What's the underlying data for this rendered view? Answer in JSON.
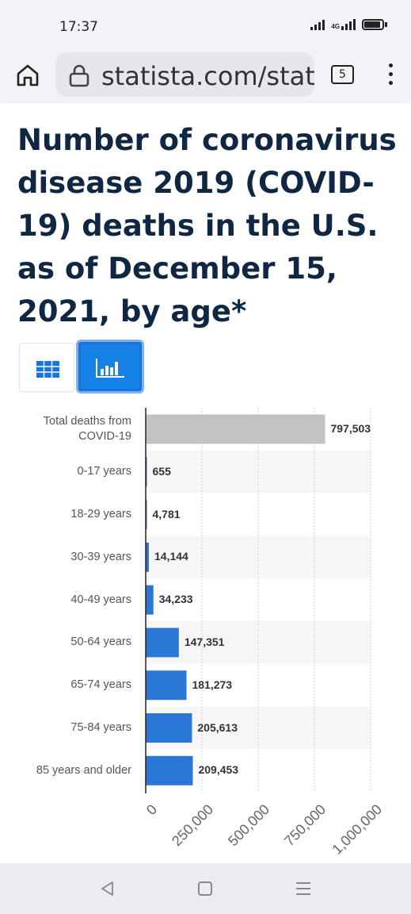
{
  "status_bar": {
    "time": "17:37",
    "network": "4G"
  },
  "browser": {
    "url": "statista.com/stat",
    "tab_count": "5"
  },
  "page": {
    "title": "Number of coronavirus disease 2019 (COVID-19) deaths in the U.S. as of December 15, 2021, by age*"
  },
  "view_toggle": {
    "table_icon": "table-icon",
    "chart_icon": "bar-chart-icon",
    "selected": "chart"
  },
  "colors": {
    "accent": "#1a73d9",
    "bar": "#2a77d8",
    "total_bar": "#c2c2c2",
    "title": "#0f2742"
  },
  "chart_data": {
    "type": "bar",
    "orientation": "horizontal",
    "categories": [
      "Total deaths from COVID-19",
      "0-17 years",
      "18-29 years",
      "30-39 years",
      "40-49 years",
      "50-64 years",
      "65-74 years",
      "75-84 years",
      "85 years and older"
    ],
    "category_lines": [
      [
        "Total deaths from",
        "COVID-19"
      ],
      [
        "0-17 years"
      ],
      [
        "18-29 years"
      ],
      [
        "30-39 years"
      ],
      [
        "40-49 years"
      ],
      [
        "50-64 years"
      ],
      [
        "65-74 years"
      ],
      [
        "75-84 years"
      ],
      [
        "85 years and older"
      ]
    ],
    "values": [
      797503,
      655,
      4781,
      14144,
      34233,
      147351,
      181273,
      205613,
      209453
    ],
    "value_labels": [
      "797,503",
      "655",
      "4,781",
      "14,144",
      "34,233",
      "147,351",
      "181,273",
      "205,613",
      "209,453"
    ],
    "highlight": [
      true,
      false,
      false,
      false,
      false,
      false,
      false,
      false,
      false
    ],
    "x_ticks": [
      "0",
      "250,000",
      "500,000",
      "750,000",
      "1,000,000"
    ],
    "x_tick_values": [
      0,
      250000,
      500000,
      750000,
      1000000
    ],
    "xlim": [
      0,
      1000000
    ],
    "grid": true
  }
}
